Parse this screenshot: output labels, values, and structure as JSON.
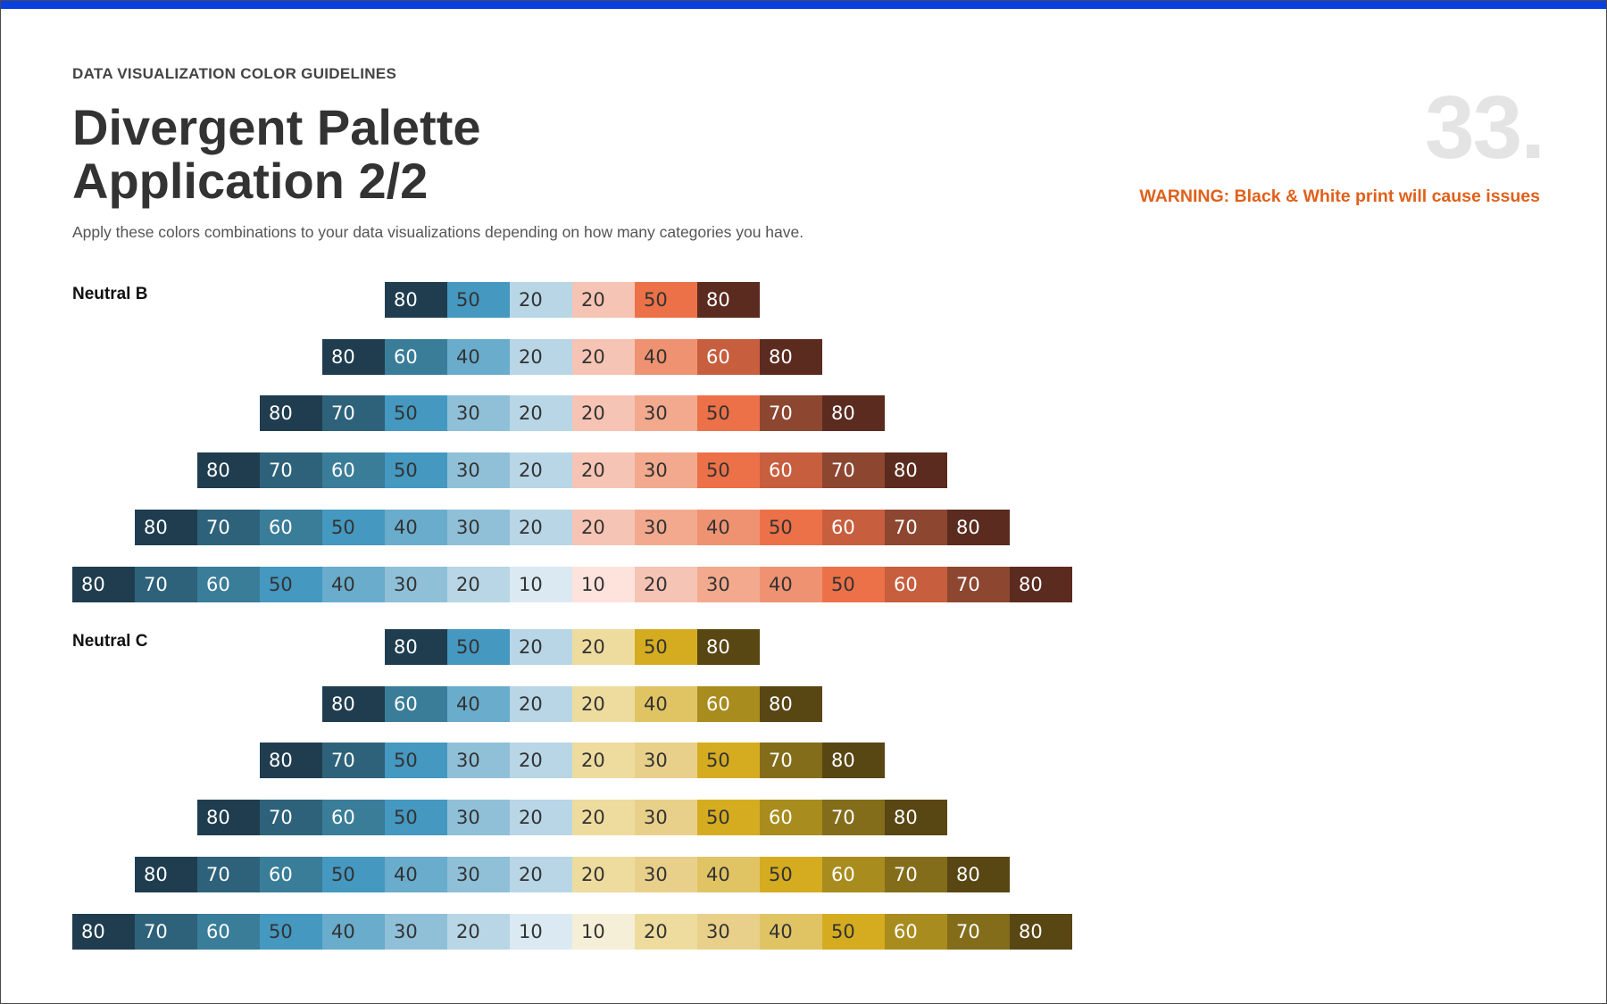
{
  "header": {
    "eyebrow": "DATA VISUALIZATION COLOR GUIDELINES",
    "title_line1": "Divergent Palette",
    "title_line2": "Application 2/2",
    "subtitle": "Apply these colors combinations to your data visualizations depending on how many categories you have.",
    "page_number": "33.",
    "warning": "WARNING: Black & White print will cause issues"
  },
  "colors": {
    "accent_bar": "#0a3fe0",
    "warning": "#e0601a",
    "blue": {
      "10": "#dbe9f2",
      "20": "#b8d6e6",
      "30": "#8fc0d8",
      "40": "#6aaccb",
      "50": "#4598c0",
      "60": "#3a7d99",
      "70": "#2e627a",
      "80": "#1f3d4f"
    },
    "orange": {
      "10": "#fde3dc",
      "20": "#f6c4b4",
      "30": "#f2a98e",
      "40": "#ef9272",
      "50": "#ec7148",
      "60": "#c75e3e",
      "70": "#8d4630",
      "80": "#5b2b1f"
    },
    "gold": {
      "10": "#f6efd7",
      "20": "#eedc9f",
      "30": "#e9d08a",
      "40": "#e0c464",
      "50": "#d5ac20",
      "60": "#a98c1e",
      "70": "#836d1b",
      "80": "#584613"
    }
  },
  "groups": [
    {
      "label": "Neutral B",
      "warm": "orange",
      "rows": [
        {
          "cool": [
            "80",
            "50",
            "20"
          ],
          "warm": [
            "20",
            "50",
            "80"
          ]
        },
        {
          "cool": [
            "80",
            "60",
            "40",
            "20"
          ],
          "warm": [
            "20",
            "40",
            "60",
            "80"
          ]
        },
        {
          "cool": [
            "80",
            "70",
            "50",
            "30",
            "20"
          ],
          "warm": [
            "20",
            "30",
            "50",
            "70",
            "80"
          ]
        },
        {
          "cool": [
            "80",
            "70",
            "60",
            "50",
            "30",
            "20"
          ],
          "warm": [
            "20",
            "30",
            "50",
            "60",
            "70",
            "80"
          ]
        },
        {
          "cool": [
            "80",
            "70",
            "60",
            "50",
            "40",
            "30",
            "20"
          ],
          "warm": [
            "20",
            "30",
            "40",
            "50",
            "60",
            "70",
            "80"
          ]
        },
        {
          "cool": [
            "80",
            "70",
            "60",
            "50",
            "40",
            "30",
            "20",
            "10"
          ],
          "warm": [
            "10",
            "20",
            "30",
            "40",
            "50",
            "60",
            "70",
            "80"
          ]
        }
      ]
    },
    {
      "label": "Neutral C",
      "warm": "gold",
      "rows": [
        {
          "cool": [
            "80",
            "50",
            "20"
          ],
          "warm": [
            "20",
            "50",
            "80"
          ]
        },
        {
          "cool": [
            "80",
            "60",
            "40",
            "20"
          ],
          "warm": [
            "20",
            "40",
            "60",
            "80"
          ]
        },
        {
          "cool": [
            "80",
            "70",
            "50",
            "30",
            "20"
          ],
          "warm": [
            "20",
            "30",
            "50",
            "70",
            "80"
          ]
        },
        {
          "cool": [
            "80",
            "70",
            "60",
            "50",
            "30",
            "20"
          ],
          "warm": [
            "20",
            "30",
            "50",
            "60",
            "70",
            "80"
          ]
        },
        {
          "cool": [
            "80",
            "70",
            "60",
            "50",
            "40",
            "30",
            "20"
          ],
          "warm": [
            "20",
            "30",
            "40",
            "50",
            "60",
            "70",
            "80"
          ]
        },
        {
          "cool": [
            "80",
            "70",
            "60",
            "50",
            "40",
            "30",
            "20",
            "10"
          ],
          "warm": [
            "10",
            "20",
            "30",
            "40",
            "50",
            "60",
            "70",
            "80"
          ]
        }
      ]
    }
  ]
}
